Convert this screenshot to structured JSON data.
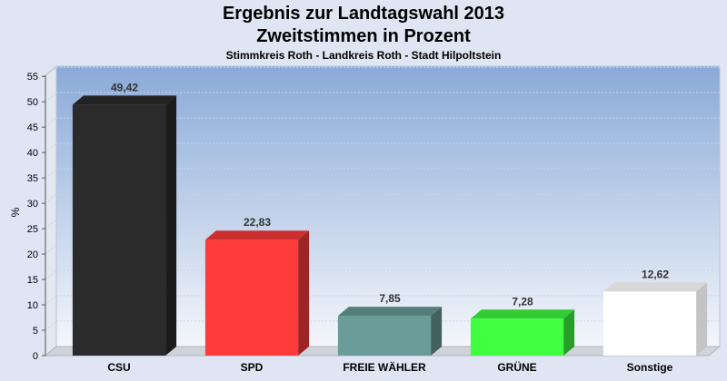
{
  "chart_data": {
    "type": "bar",
    "title": "Ergebnis zur Landtagswahl 2013",
    "subtitle": "Zweitstimmen in Prozent",
    "subtitle2": "Stimmkreis Roth - Landkreis Roth - Stadt Hilpoltstein",
    "ylabel": "%",
    "xlabel": "",
    "ylim": [
      0,
      57
    ],
    "yticks": [
      0,
      5,
      10,
      15,
      20,
      25,
      30,
      35,
      40,
      45,
      50,
      55
    ],
    "categories": [
      "CSU",
      "SPD",
      "FREIE WÄHLER",
      "GRÜNE",
      "Sonstige"
    ],
    "values": [
      49.42,
      22.83,
      7.85,
      7.28,
      12.62
    ],
    "value_labels": [
      "49,42",
      "22,83",
      "7,85",
      "7,28",
      "12,62"
    ],
    "colors": [
      "#2b2b2b",
      "#ff3b3b",
      "#6a9c9a",
      "#40ff40",
      "#ffffff"
    ],
    "grid": true,
    "legend": "none"
  }
}
